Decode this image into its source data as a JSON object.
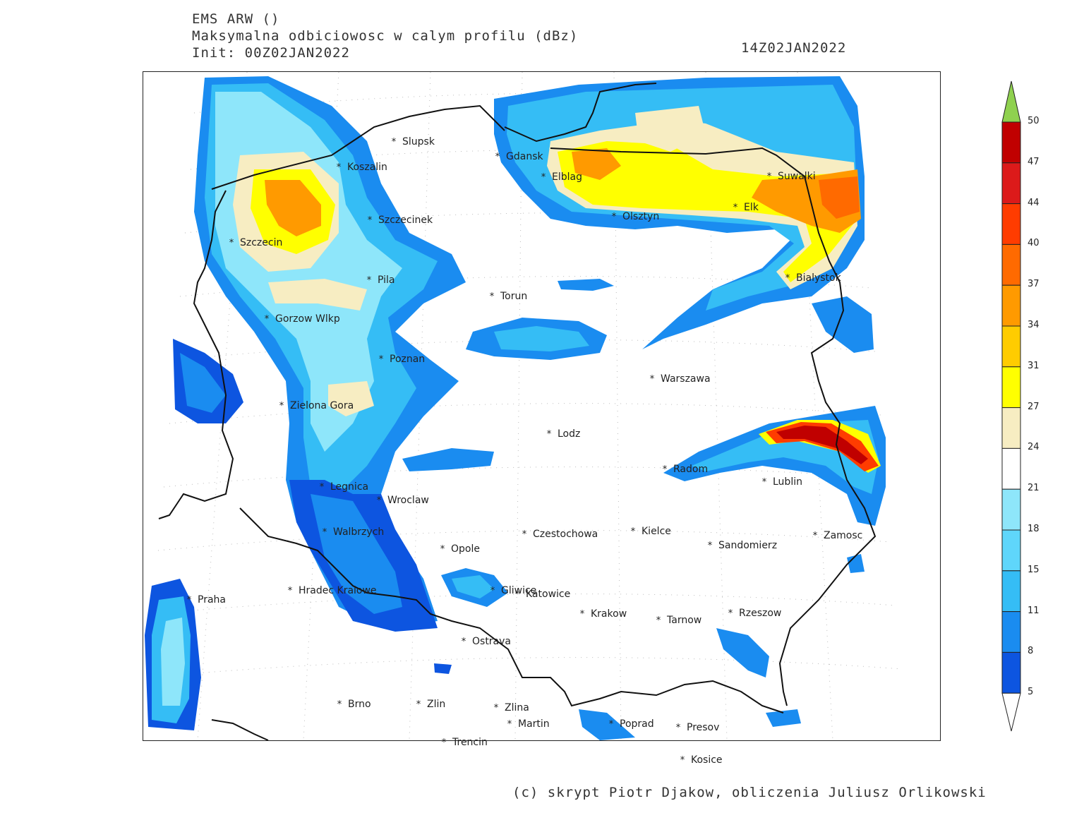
{
  "header": {
    "model": "EMS ARW ()",
    "field": "Maksymalna odbiciowosc w calym profilu (dBz)",
    "init": "Init: 00Z02JAN2022",
    "valid": "14Z02JAN2022"
  },
  "colorbar": {
    "levels": [
      "50",
      "47",
      "44",
      "40",
      "37",
      "34",
      "31",
      "27",
      "24",
      "21",
      "18",
      "15",
      "11",
      "8",
      "5"
    ],
    "colors": [
      "#c00000",
      "#dc1a1a",
      "#ff3c00",
      "#ff6a00",
      "#ff9a00",
      "#ffcc00",
      "#ffff00",
      "#f7edc2",
      "#ffffff",
      "#8ee6fa",
      "#5fd6fb",
      "#35bdf5",
      "#1a8cf0",
      "#0d55e0",
      "#0a2ee0",
      "#0000b8"
    ],
    "top_color": "#8fd14f"
  },
  "cities": [
    {
      "name": "Slupsk"
    },
    {
      "name": "Koszalin"
    },
    {
      "name": "Gdansk"
    },
    {
      "name": "Elblag"
    },
    {
      "name": "Suwalki"
    },
    {
      "name": "Szczecinek"
    },
    {
      "name": "Olsztyn"
    },
    {
      "name": "Elk"
    },
    {
      "name": "Szczecin"
    },
    {
      "name": "Bialystok"
    },
    {
      "name": "Pila"
    },
    {
      "name": "Torun"
    },
    {
      "name": "Gorzow Wlkp"
    },
    {
      "name": "Poznan"
    },
    {
      "name": "Warszawa"
    },
    {
      "name": "Zielona Gora"
    },
    {
      "name": "Lodz"
    },
    {
      "name": "Radom"
    },
    {
      "name": "Lublin"
    },
    {
      "name": "Legnica"
    },
    {
      "name": "Wroclaw"
    },
    {
      "name": "Walbrzych"
    },
    {
      "name": "Czestochowa"
    },
    {
      "name": "Kielce"
    },
    {
      "name": "Opole"
    },
    {
      "name": "Sandomierz"
    },
    {
      "name": "Zamosc"
    },
    {
      "name": "Hradec Kralowe"
    },
    {
      "name": "Gliwice"
    },
    {
      "name": "Katowice"
    },
    {
      "name": "Praha"
    },
    {
      "name": "Krakow"
    },
    {
      "name": "Tarnow"
    },
    {
      "name": "Rzeszow"
    },
    {
      "name": "Ostrava"
    },
    {
      "name": "Brno"
    },
    {
      "name": "Zlin"
    },
    {
      "name": "Zlina"
    },
    {
      "name": "Martin"
    },
    {
      "name": "Poprad"
    },
    {
      "name": "Presov"
    },
    {
      "name": "Trencin"
    },
    {
      "name": "Kosice"
    }
  ],
  "credit": "(c) skrypt Piotr Djakow, obliczenia Juliusz Orlikowski"
}
